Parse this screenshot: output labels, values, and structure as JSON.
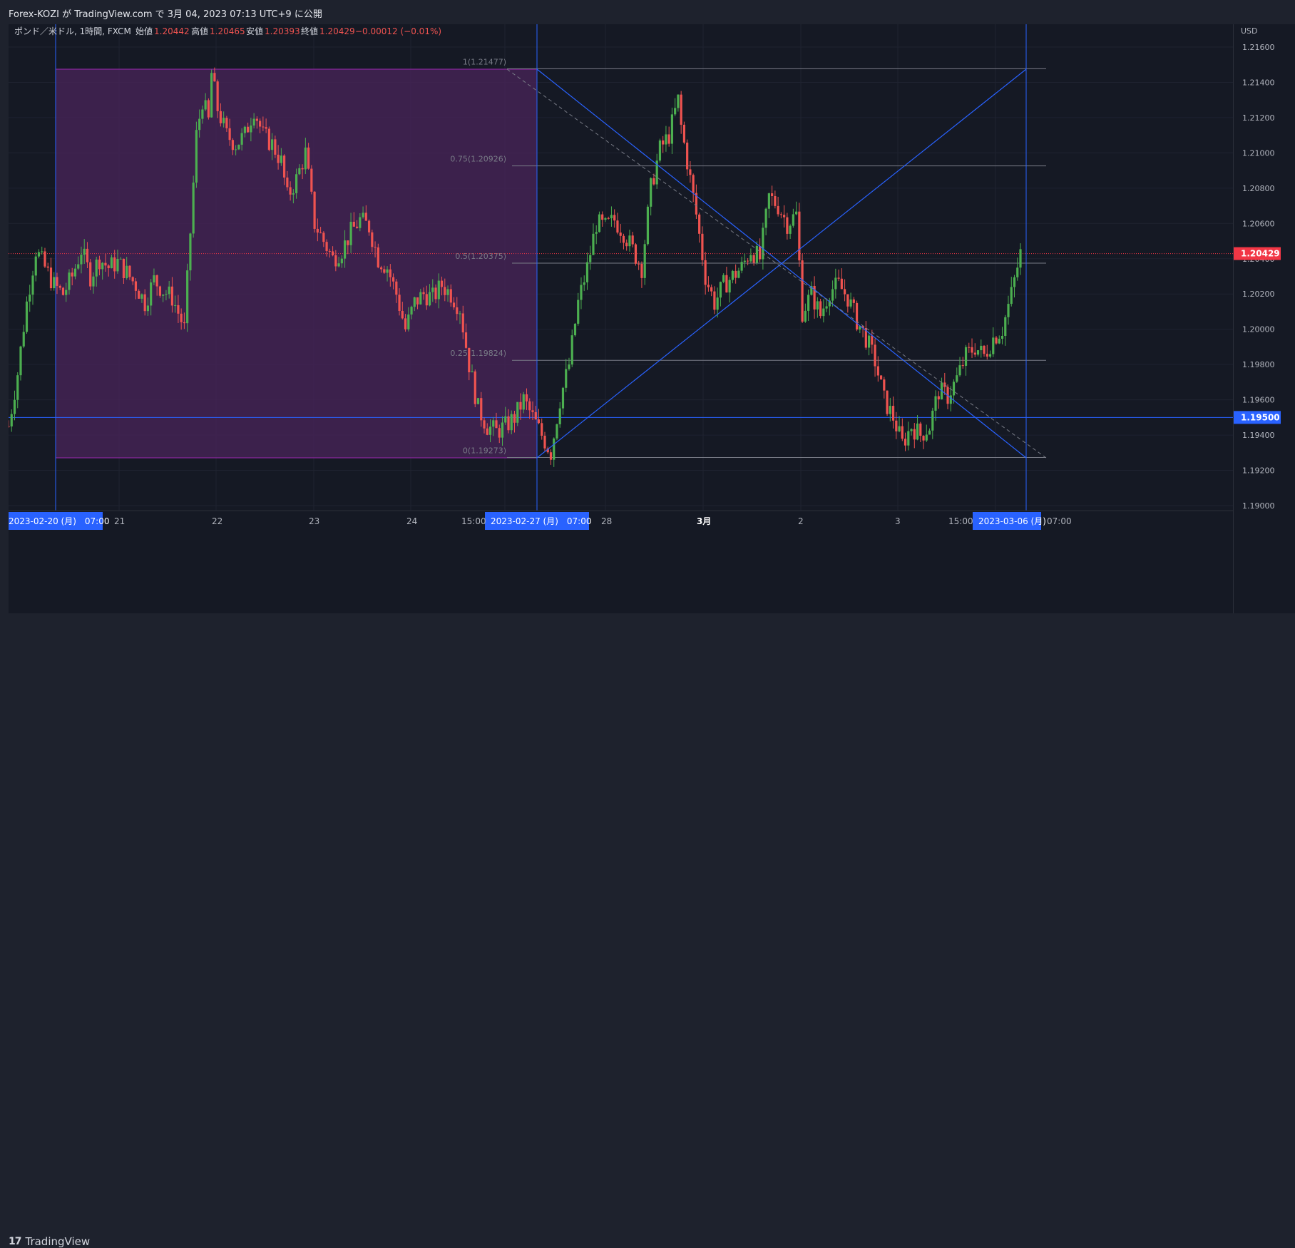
{
  "header": {
    "publish_line": "Forex-KOZI が TradingView.com で 3月 04, 2023 07:13 UTC+9 に公開"
  },
  "legend": {
    "symbol": "ポンド／米ドル, 1時間, FXCM",
    "open_label": "始値",
    "open": "1.20442",
    "high_label": "高値",
    "high": "1.20465",
    "low_label": "安値",
    "low": "1.20393",
    "close_label": "終値",
    "close": "1.20429",
    "change": "−0.00012 (−0.01%)"
  },
  "price_axis": {
    "currency": "USD",
    "ticks": [
      "1.21600",
      "1.21400",
      "1.21200",
      "1.21000",
      "1.20800",
      "1.20600",
      "1.20400",
      "1.20200",
      "1.20000",
      "1.19800",
      "1.19600",
      "1.19400",
      "1.19200",
      "1.19000"
    ],
    "last_price_label": "1.20429",
    "line_price_label": "1.19500"
  },
  "time_axis": {
    "ticks": [
      "21",
      "22",
      "23",
      "24",
      "15:00",
      "28",
      "3月",
      "2",
      "3",
      "15:00",
      "07:00"
    ],
    "marker_left": "2023-02-20 (月)　07:00",
    "marker_mid": "2023-02-27 (月)　07:00",
    "marker_right": "2023-03-06 (月)"
  },
  "fib_levels": [
    {
      "ratio": "1(1.21477)",
      "price": 1.21477
    },
    {
      "ratio": "0.75(1.20926)",
      "price": 1.20926
    },
    {
      "ratio": "0.5(1.20375)",
      "price": 1.20375
    },
    {
      "ratio": "0.25(1.19824)",
      "price": 1.19824
    },
    {
      "ratio": "0(1.19273)",
      "price": 1.19273
    }
  ],
  "footer": {
    "brand": "TradingView"
  },
  "colors": {
    "up": "#26a69a",
    "up_candle": "#4caf50",
    "down": "#ef5350",
    "line_blue": "#2962ff",
    "range_fill": "#4a2459",
    "last_price_bg": "#f23645",
    "hline_label_bg": "#2962ff"
  },
  "chart_data": {
    "type": "candlestick",
    "symbol": "GBPUSD",
    "timeframe": "1h",
    "ylim": [
      1.19,
      1.217
    ],
    "horizontal_line": 1.195,
    "last_price": 1.20429,
    "close_path": [
      [
        0,
        1.1945
      ],
      [
        3,
        1.1975
      ],
      [
        6,
        1.2015
      ],
      [
        9,
        1.2045
      ],
      [
        12,
        1.2035
      ],
      [
        15,
        1.2025
      ],
      [
        18,
        1.202
      ],
      [
        21,
        1.203
      ],
      [
        24,
        1.2045
      ],
      [
        27,
        1.203
      ],
      [
        30,
        1.204
      ],
      [
        33,
        1.2035
      ],
      [
        36,
        1.2038
      ],
      [
        39,
        1.2032
      ],
      [
        42,
        1.2025
      ],
      [
        45,
        1.2015
      ],
      [
        48,
        1.2028
      ],
      [
        51,
        1.2022
      ],
      [
        54,
        1.2018
      ],
      [
        57,
        1.2005
      ],
      [
        58,
        1.2
      ],
      [
        60,
        1.2055
      ],
      [
        62,
        1.211
      ],
      [
        64,
        1.213
      ],
      [
        66,
        1.2118
      ],
      [
        67,
        1.2145
      ],
      [
        69,
        1.2125
      ],
      [
        72,
        1.211
      ],
      [
        75,
        1.2105
      ],
      [
        78,
        1.211
      ],
      [
        81,
        1.2125
      ],
      [
        84,
        1.211
      ],
      [
        87,
        1.2105
      ],
      [
        90,
        1.2095
      ],
      [
        92,
        1.2075
      ],
      [
        95,
        1.2085
      ],
      [
        98,
        1.21
      ],
      [
        101,
        1.206
      ],
      [
        104,
        1.205
      ],
      [
        107,
        1.204
      ],
      [
        110,
        1.2045
      ],
      [
        113,
        1.2055
      ],
      [
        116,
        1.2062
      ],
      [
        119,
        1.2058
      ],
      [
        122,
        1.204
      ],
      [
        125,
        1.2035
      ],
      [
        128,
        1.202
      ],
      [
        131,
        1.2
      ],
      [
        134,
        1.2015
      ],
      [
        137,
        1.202
      ],
      [
        140,
        1.2018
      ],
      [
        143,
        1.2025
      ],
      [
        146,
        1.202
      ],
      [
        149,
        1.2012
      ],
      [
        152,
        1.198
      ],
      [
        155,
        1.1955
      ],
      [
        158,
        1.1945
      ],
      [
        161,
        1.1942
      ],
      [
        164,
        1.1945
      ],
      [
        167,
        1.195
      ],
      [
        170,
        1.196
      ],
      [
        173,
        1.195
      ],
      [
        176,
        1.194
      ],
      [
        179,
        1.193
      ],
      [
        182,
        1.196
      ],
      [
        185,
        1.198
      ],
      [
        188,
        1.2015
      ],
      [
        191,
        1.2035
      ],
      [
        194,
        1.206
      ],
      [
        197,
        1.2058
      ],
      [
        200,
        1.2062
      ],
      [
        203,
        1.2055
      ],
      [
        206,
        1.2045
      ],
      [
        209,
        1.2035
      ],
      [
        212,
        1.208
      ],
      [
        215,
        1.2102
      ],
      [
        218,
        1.211
      ],
      [
        221,
        1.213
      ],
      [
        222,
        1.2115
      ],
      [
        224,
        1.2095
      ],
      [
        227,
        1.2065
      ],
      [
        230,
        1.203
      ],
      [
        233,
        1.2015
      ],
      [
        236,
        1.2025
      ],
      [
        239,
        1.203
      ],
      [
        242,
        1.2035
      ],
      [
        245,
        1.2045
      ],
      [
        248,
        1.204
      ],
      [
        251,
        1.2075
      ],
      [
        254,
        1.207
      ],
      [
        257,
        1.206
      ],
      [
        260,
        1.2065
      ],
      [
        262,
        1.201
      ],
      [
        265,
        1.202
      ],
      [
        268,
        1.2008
      ],
      [
        271,
        1.2022
      ],
      [
        274,
        1.2025
      ],
      [
        277,
        1.2018
      ],
      [
        280,
        1.2005
      ],
      [
        283,
        1.1995
      ],
      [
        286,
        1.1982
      ],
      [
        289,
        1.196
      ],
      [
        292,
        1.195
      ],
      [
        295,
        1.1935
      ],
      [
        298,
        1.1945
      ],
      [
        301,
        1.194
      ],
      [
        304,
        1.1945
      ],
      [
        307,
        1.1965
      ],
      [
        310,
        1.1962
      ],
      [
        313,
        1.1972
      ],
      [
        316,
        1.1985
      ],
      [
        319,
        1.199
      ],
      [
        322,
        1.1985
      ],
      [
        325,
        1.1995
      ],
      [
        328,
        1.2
      ],
      [
        331,
        1.202
      ],
      [
        334,
        1.2043
      ]
    ],
    "series": [
      {
        "name": "fib_retracement",
        "from": 1.19273,
        "to": 1.21477
      },
      {
        "name": "horizontal_line",
        "price": 1.195
      }
    ]
  }
}
